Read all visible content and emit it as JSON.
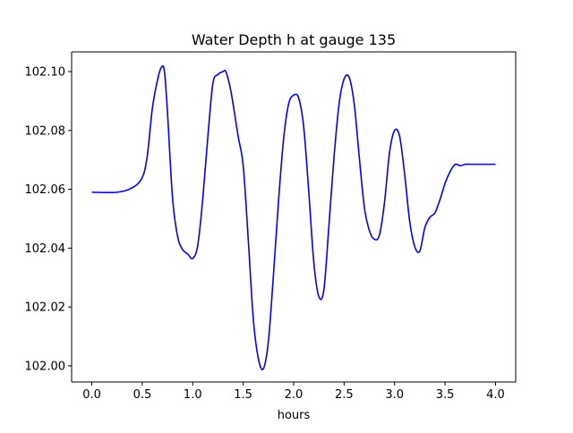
{
  "chart_data": {
    "type": "line",
    "title": "Water Depth h at gauge 135",
    "xlabel": "hours",
    "ylabel": "",
    "xlim": [
      -0.2,
      4.2
    ],
    "ylim": [
      101.9945,
      102.1067
    ],
    "xticks": [
      0.0,
      0.5,
      1.0,
      1.5,
      2.0,
      2.5,
      3.0,
      3.5,
      4.0
    ],
    "xtick_labels": [
      "0.0",
      "0.5",
      "1.0",
      "1.5",
      "2.0",
      "2.5",
      "3.0",
      "3.5",
      "4.0"
    ],
    "yticks": [
      102.0,
      102.02,
      102.04,
      102.06,
      102.08,
      102.1
    ],
    "ytick_labels": [
      "102.00",
      "102.02",
      "102.04",
      "102.06",
      "102.08",
      "102.10"
    ],
    "grid": false,
    "colors": {
      "series": "#0000ff",
      "axes": "#000000",
      "background": "#ffffff"
    },
    "series": [
      {
        "color": "#0000ff",
        "x": [
          0.0,
          0.25,
          0.4,
          0.5,
          0.55,
          0.6,
          0.65,
          0.69,
          0.72,
          0.75,
          0.8,
          0.85,
          0.9,
          0.95,
          1.0,
          1.05,
          1.1,
          1.15,
          1.2,
          1.25,
          1.3,
          1.33,
          1.38,
          1.45,
          1.5,
          1.55,
          1.6,
          1.65,
          1.7,
          1.75,
          1.8,
          1.85,
          1.9,
          1.95,
          2.0,
          2.05,
          2.1,
          2.15,
          2.2,
          2.25,
          2.3,
          2.35,
          2.4,
          2.45,
          2.5,
          2.55,
          2.6,
          2.65,
          2.7,
          2.75,
          2.8,
          2.85,
          2.9,
          2.95,
          3.0,
          3.05,
          3.1,
          3.15,
          3.2,
          3.25,
          3.3,
          3.35,
          3.4,
          3.45,
          3.5,
          3.55,
          3.6,
          3.65,
          3.7,
          3.75,
          3.8,
          3.85,
          3.9,
          3.95,
          4.0
        ],
        "y": [
          102.059,
          102.059,
          102.0605,
          102.064,
          102.0715,
          102.0875,
          102.097,
          102.1015,
          102.1,
          102.086,
          102.057,
          102.044,
          102.0395,
          102.038,
          102.0365,
          102.041,
          102.057,
          102.078,
          102.096,
          102.099,
          102.1,
          102.0998,
          102.093,
          102.078,
          102.068,
          102.043,
          102.016,
          102.0025,
          101.999,
          102.0085,
          102.031,
          102.056,
          102.077,
          102.089,
          102.092,
          102.091,
          102.081,
          102.059,
          102.035,
          102.0235,
          102.026,
          102.048,
          102.071,
          102.089,
          102.0975,
          102.098,
          102.089,
          102.071,
          102.054,
          102.046,
          102.043,
          102.0445,
          102.0555,
          102.0725,
          102.08,
          102.078,
          102.065,
          102.049,
          102.0405,
          102.039,
          102.047,
          102.0505,
          102.052,
          102.0565,
          102.062,
          102.066,
          102.0685,
          102.068,
          102.0685,
          102.0685,
          102.0685,
          102.0685,
          102.0685,
          102.0685,
          102.0685
        ]
      }
    ]
  }
}
